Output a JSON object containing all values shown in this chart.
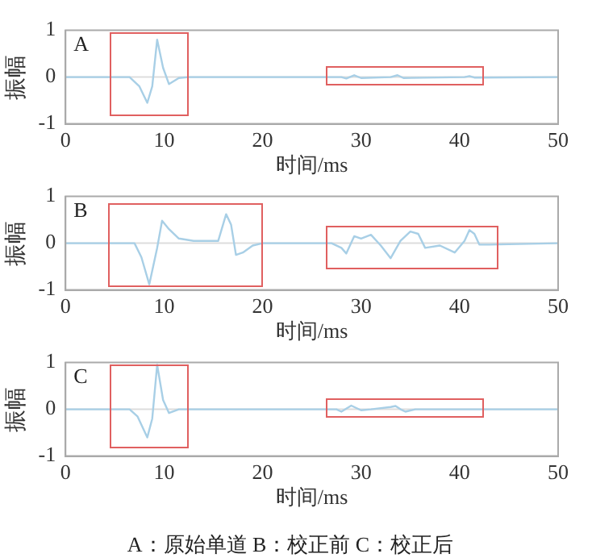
{
  "chart_data": [
    {
      "type": "line",
      "xlabel": "时间/ms",
      "ylabel": "振幅",
      "annotations": [
        "A"
      ],
      "xlim": [
        0,
        50
      ],
      "xticks": [
        0,
        10,
        20,
        30,
        40,
        50
      ],
      "ylim": [
        -1,
        1
      ],
      "yticks": [
        -1,
        0,
        1
      ],
      "grid": false,
      "legend": false,
      "marker": "none",
      "line_style": "solid",
      "ref_lines": [
        {
          "axis": "y",
          "value": 0,
          "color": "#dddddd"
        }
      ],
      "series": [
        {
          "color": "#a8cfe6",
          "x": [
            0,
            6.5,
            7.5,
            8.3,
            8.8,
            9.3,
            9.9,
            10.5,
            11.5,
            12.5,
            28,
            28.5,
            29.3,
            30,
            33,
            33.7,
            34.3,
            40.5,
            41,
            41.5,
            50
          ],
          "values": [
            0,
            0,
            -0.2,
            -0.55,
            -0.2,
            0.8,
            0.2,
            -0.15,
            -0.02,
            0,
            0,
            -0.03,
            0.04,
            -0.02,
            0,
            0.04,
            -0.02,
            0,
            0.02,
            -0.01,
            0
          ]
        }
      ]
    },
    {
      "type": "line",
      "xlabel": "时间/ms",
      "ylabel": "振幅",
      "annotations": [
        "B"
      ],
      "xlim": [
        0,
        50
      ],
      "xticks": [
        0,
        10,
        20,
        30,
        40,
        50
      ],
      "ylim": [
        -1,
        1
      ],
      "yticks": [
        -1,
        0,
        1
      ],
      "grid": false,
      "legend": false,
      "marker": "none",
      "line_style": "solid",
      "ref_lines": [
        {
          "axis": "y",
          "value": 0,
          "color": "#dddddd"
        }
      ],
      "series": [
        {
          "color": "#a8cfe6",
          "x": [
            0,
            7,
            7.7,
            8.5,
            9.3,
            9.8,
            10.5,
            11.5,
            13,
            15.5,
            16.3,
            16.8,
            17.3,
            18,
            19,
            20,
            27,
            28,
            28.5,
            29.3,
            30,
            31,
            32,
            33,
            34,
            35,
            35.8,
            36.5,
            38,
            39.5,
            40.5,
            41,
            41.5,
            42,
            43,
            50
          ],
          "values": [
            0,
            0,
            -0.3,
            -0.88,
            -0.1,
            0.48,
            0.3,
            0.1,
            0.05,
            0.05,
            0.62,
            0.4,
            -0.25,
            -0.2,
            -0.05,
            0,
            0,
            -0.1,
            -0.22,
            0.15,
            0.1,
            0.18,
            -0.05,
            -0.32,
            0.05,
            0.25,
            0.2,
            -0.1,
            -0.05,
            -0.2,
            0.05,
            0.28,
            0.2,
            -0.03,
            -0.03,
            0
          ]
        }
      ]
    },
    {
      "type": "line",
      "xlabel": "时间/ms",
      "ylabel": "振幅",
      "annotations": [
        "C",
        "A：原始单道 B：校正前 C：校正后"
      ],
      "xlim": [
        0,
        50
      ],
      "xticks": [
        0,
        10,
        20,
        30,
        40,
        50
      ],
      "ylim": [
        -1,
        1
      ],
      "yticks": [
        -1,
        0,
        1
      ],
      "grid": false,
      "legend": false,
      "marker": "none",
      "line_style": "solid",
      "ref_lines": [
        {
          "axis": "y",
          "value": 0,
          "color": "#dddddd"
        }
      ],
      "series": [
        {
          "color": "#a8cfe6",
          "x": [
            0,
            6.5,
            7.3,
            8.3,
            8.8,
            9.3,
            9.9,
            10.5,
            11.5,
            27.5,
            28,
            29,
            30,
            31,
            33,
            33.5,
            34,
            34.5,
            35.5,
            50
          ],
          "values": [
            0,
            0,
            -0.15,
            -0.6,
            -0.2,
            0.95,
            0.2,
            -0.08,
            0,
            0,
            -0.05,
            0.08,
            -0.02,
            0,
            0.05,
            0.07,
            0,
            -0.05,
            0,
            0
          ]
        }
      ]
    }
  ]
}
